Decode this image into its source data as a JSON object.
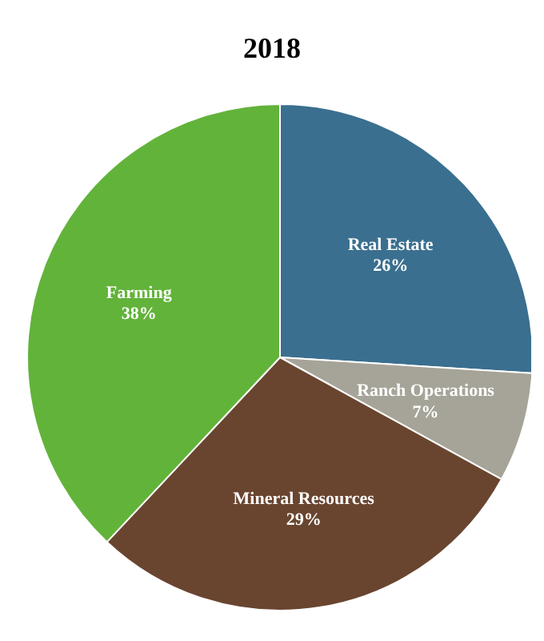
{
  "chart_data": {
    "type": "pie",
    "title": "2018",
    "categories": [
      "Real Estate",
      "Ranch Operations",
      "Mineral Resources",
      "Farming"
    ],
    "values": [
      26,
      7,
      29,
      38
    ],
    "colors": [
      "#3a6f8f",
      "#a6a498",
      "#694530",
      "#62b33a"
    ],
    "value_labels": [
      "26%",
      "7%",
      "29%",
      "38%"
    ]
  }
}
